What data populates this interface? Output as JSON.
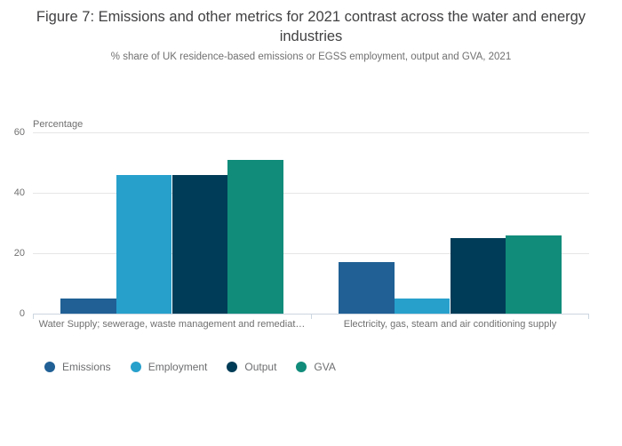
{
  "header": {
    "title": "Figure 7: Emissions and other metrics for 2021 contrast across the water and energy industries",
    "subtitle": "% share of UK residence-based emissions or EGSS employment, output and GVA, 2021"
  },
  "chart_data": {
    "type": "bar",
    "title": "Figure 7: Emissions and other metrics for 2021 contrast across the water and energy industries",
    "subtitle": "% share of UK residence-based emissions or EGSS employment, output and GVA, 2021",
    "xlabel": "",
    "ylabel": "Percentage",
    "ylim": [
      0,
      60
    ],
    "yticks": [
      0,
      20,
      40,
      60
    ],
    "grid": true,
    "legend_position": "bottom-left",
    "categories": [
      "Water Supply; sewerage, waste management and remediat…",
      "Electricity, gas, steam and air conditioning supply"
    ],
    "series": [
      {
        "name": "Emissions",
        "color": "#206095",
        "values": [
          5,
          17
        ]
      },
      {
        "name": "Employment",
        "color": "#27A0CC",
        "values": [
          46,
          5
        ]
      },
      {
        "name": "Output",
        "color": "#003C57",
        "values": [
          46,
          25
        ]
      },
      {
        "name": "GVA",
        "color": "#118C7B",
        "values": [
          51,
          26
        ]
      }
    ]
  },
  "colors": {
    "grid": "#e6e6e6",
    "axis": "#ccd6e0",
    "title_text": "#414042",
    "muted_text": "#707071",
    "legend_text": "#6d6e70"
  }
}
